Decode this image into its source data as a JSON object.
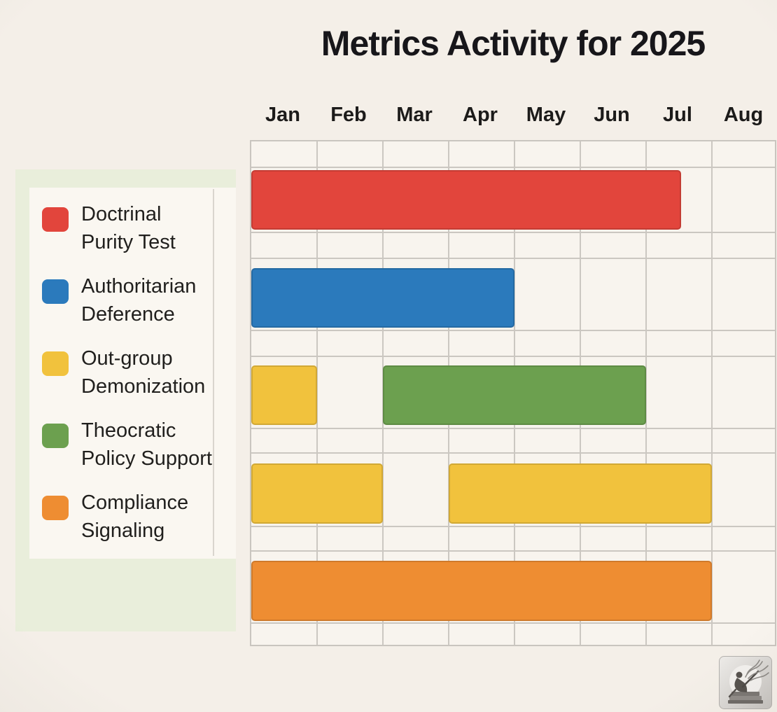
{
  "page": {
    "title": "Metrics Activity for 2025"
  },
  "chart_data": {
    "type": "bar",
    "subtype": "gantt",
    "title": "Metrics Activity for 2025",
    "grid": true,
    "legend_position": "left",
    "x_axis": {
      "unit": "month",
      "tick_labels": [
        "Jan",
        "Feb",
        "Mar",
        "Apr",
        "May",
        "Jun",
        "Jul",
        "Aug"
      ],
      "range_months": [
        0,
        8
      ]
    },
    "rows": [
      {
        "row": 1,
        "segments": [
          {
            "series": "Doctrinal Purity Test",
            "color_key": "red",
            "start": 0,
            "end": 6.53,
            "note": "Jan to mid-Jul"
          }
        ]
      },
      {
        "row": 2,
        "segments": [
          {
            "series": "Authoritarian Deference",
            "color_key": "blue",
            "start": 0,
            "end": 4,
            "note": "Jan through Apr"
          }
        ]
      },
      {
        "row": 3,
        "segments": [
          {
            "series": "Out-group Demonization",
            "color_key": "yellow",
            "start": 0,
            "end": 1,
            "note": "Jan"
          },
          {
            "series": "Theocratic Policy Support",
            "color_key": "green",
            "start": 2,
            "end": 6,
            "note": "Mar through Jun"
          }
        ]
      },
      {
        "row": 4,
        "segments": [
          {
            "series": "Out-group Demonization",
            "color_key": "yellow",
            "start": 0,
            "end": 2,
            "note": "Jan through Feb"
          },
          {
            "series": "Out-group Demonization",
            "color_key": "yellow",
            "start": 3,
            "end": 7,
            "note": "Apr through Jul"
          }
        ]
      },
      {
        "row": 5,
        "segments": [
          {
            "series": "Compliance Signaling",
            "color_key": "orange",
            "start": 0,
            "end": 7,
            "note": "Jan through Jul"
          }
        ]
      }
    ]
  },
  "legend": {
    "items": [
      {
        "label": "Doctrinal\nPurity Test",
        "color_key": "red"
      },
      {
        "label": "Authoritarian\nDeference",
        "color_key": "blue"
      },
      {
        "label": "Out-group\nDemonization",
        "color_key": "yellow"
      },
      {
        "label": "Theocratic\nPolicy Support",
        "color_key": "green"
      },
      {
        "label": "Compliance\nSignaling",
        "color_key": "orange"
      }
    ]
  },
  "colors": {
    "red": "#e2453c",
    "blue": "#2b7abc",
    "yellow": "#f1c23d",
    "green": "#6ca04f",
    "orange": "#ee8d32",
    "page_bg": "#f4efe8",
    "plot_bg": "#f8f4ee",
    "gridline": "#cbc7c1",
    "legend_panel_bg": "#e9eedb",
    "legend_card_bg": "#faf7f1",
    "divider": "#d9d5ce",
    "text": "#1a1918"
  }
}
